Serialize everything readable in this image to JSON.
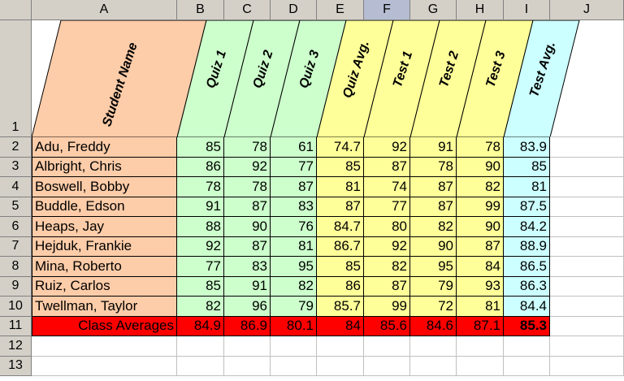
{
  "columns": [
    "A",
    "B",
    "C",
    "D",
    "E",
    "F",
    "G",
    "H",
    "I",
    "J"
  ],
  "selected_column": "F",
  "row_numbers": [
    "1",
    "2",
    "3",
    "4",
    "5",
    "6",
    "7",
    "8",
    "9",
    "10",
    "11",
    "12",
    "13"
  ],
  "headers": {
    "student_name": "Student Name",
    "quiz1": "Quiz 1",
    "quiz2": "Quiz 2",
    "quiz3": "Quiz 3",
    "quiz_avg": "Quiz Avg.",
    "test1": "Test 1",
    "test2": "Test 2",
    "test3": "Test 3",
    "test_avg": "Test Avg."
  },
  "students": [
    {
      "name": "Adu, Freddy",
      "q1": "85",
      "q2": "78",
      "q3": "61",
      "qavg": "74.7",
      "t1": "92",
      "t2": "91",
      "t3": "78",
      "tavg": "83.9"
    },
    {
      "name": "Albright, Chris",
      "q1": "86",
      "q2": "92",
      "q3": "77",
      "qavg": "85",
      "t1": "87",
      "t2": "78",
      "t3": "90",
      "tavg": "85"
    },
    {
      "name": "Boswell, Bobby",
      "q1": "78",
      "q2": "78",
      "q3": "87",
      "qavg": "81",
      "t1": "74",
      "t2": "87",
      "t3": "82",
      "tavg": "81"
    },
    {
      "name": "Buddle, Edson",
      "q1": "91",
      "q2": "87",
      "q3": "83",
      "qavg": "87",
      "t1": "77",
      "t2": "87",
      "t3": "99",
      "tavg": "87.5"
    },
    {
      "name": "Heaps, Jay",
      "q1": "88",
      "q2": "90",
      "q3": "76",
      "qavg": "84.7",
      "t1": "80",
      "t2": "82",
      "t3": "90",
      "tavg": "84.2"
    },
    {
      "name": "Hejduk, Frankie",
      "q1": "92",
      "q2": "87",
      "q3": "81",
      "qavg": "86.7",
      "t1": "92",
      "t2": "90",
      "t3": "87",
      "tavg": "88.9"
    },
    {
      "name": "Mina, Roberto",
      "q1": "77",
      "q2": "83",
      "q3": "95",
      "qavg": "85",
      "t1": "82",
      "t2": "95",
      "t3": "84",
      "tavg": "86.5"
    },
    {
      "name": "Ruiz, Carlos",
      "q1": "85",
      "q2": "91",
      "q3": "82",
      "qavg": "86",
      "t1": "87",
      "t2": "79",
      "t3": "93",
      "tavg": "86.3"
    },
    {
      "name": "Twellman, Taylor",
      "q1": "82",
      "q2": "96",
      "q3": "79",
      "qavg": "85.7",
      "t1": "99",
      "t2": "72",
      "t3": "81",
      "tavg": "84.4"
    }
  ],
  "class_averages": {
    "label": "Class Averages",
    "q1": "84.9",
    "q2": "86.9",
    "q3": "80.1",
    "qavg": "84",
    "t1": "85.6",
    "t2": "84.6",
    "t3": "87.1",
    "tavg": "85.3"
  },
  "colors": {
    "name": "#fdcca8",
    "quiz": "#ccffcc",
    "quiz_avg": "#ffff99",
    "test": "#ffff99",
    "test_avg": "#ccffff",
    "averages_row": "#ff0000",
    "header_gray": "#d4d0c8",
    "selected_header": "#b6bdd2"
  }
}
